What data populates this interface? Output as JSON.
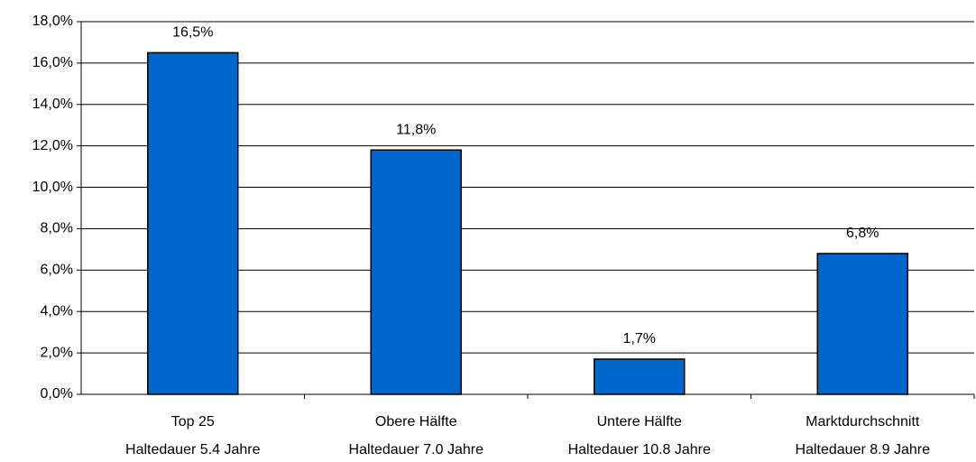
{
  "chart_data": {
    "type": "bar",
    "categories": [
      [
        "Top 25",
        "Haltedauer 5.4 Jahre"
      ],
      [
        "Obere Hälfte",
        "Haltedauer 7.0 Jahre"
      ],
      [
        "Untere Hälfte",
        "Haltedauer 10.8 Jahre"
      ],
      [
        "Marktdurchschnitt",
        "Haltedauer 8.9 Jahre"
      ]
    ],
    "values": [
      16.5,
      11.8,
      1.7,
      6.8
    ],
    "value_labels": [
      "16,5%",
      "11,8%",
      "1,7%",
      "6,8%"
    ],
    "color": "#0066cc",
    "ylim": [
      0,
      18
    ],
    "yticks": [
      {
        "value": 0,
        "label": "0,0%"
      },
      {
        "value": 2,
        "label": "2,0%"
      },
      {
        "value": 4,
        "label": "4,0%"
      },
      {
        "value": 6,
        "label": "6,0%"
      },
      {
        "value": 8,
        "label": "8,0%"
      },
      {
        "value": 10,
        "label": "10,0%"
      },
      {
        "value": 12,
        "label": "12,0%"
      },
      {
        "value": 14,
        "label": "14,0%"
      },
      {
        "value": 16,
        "label": "16,0%"
      },
      {
        "value": 18,
        "label": "18,0%"
      }
    ],
    "grid": true
  }
}
